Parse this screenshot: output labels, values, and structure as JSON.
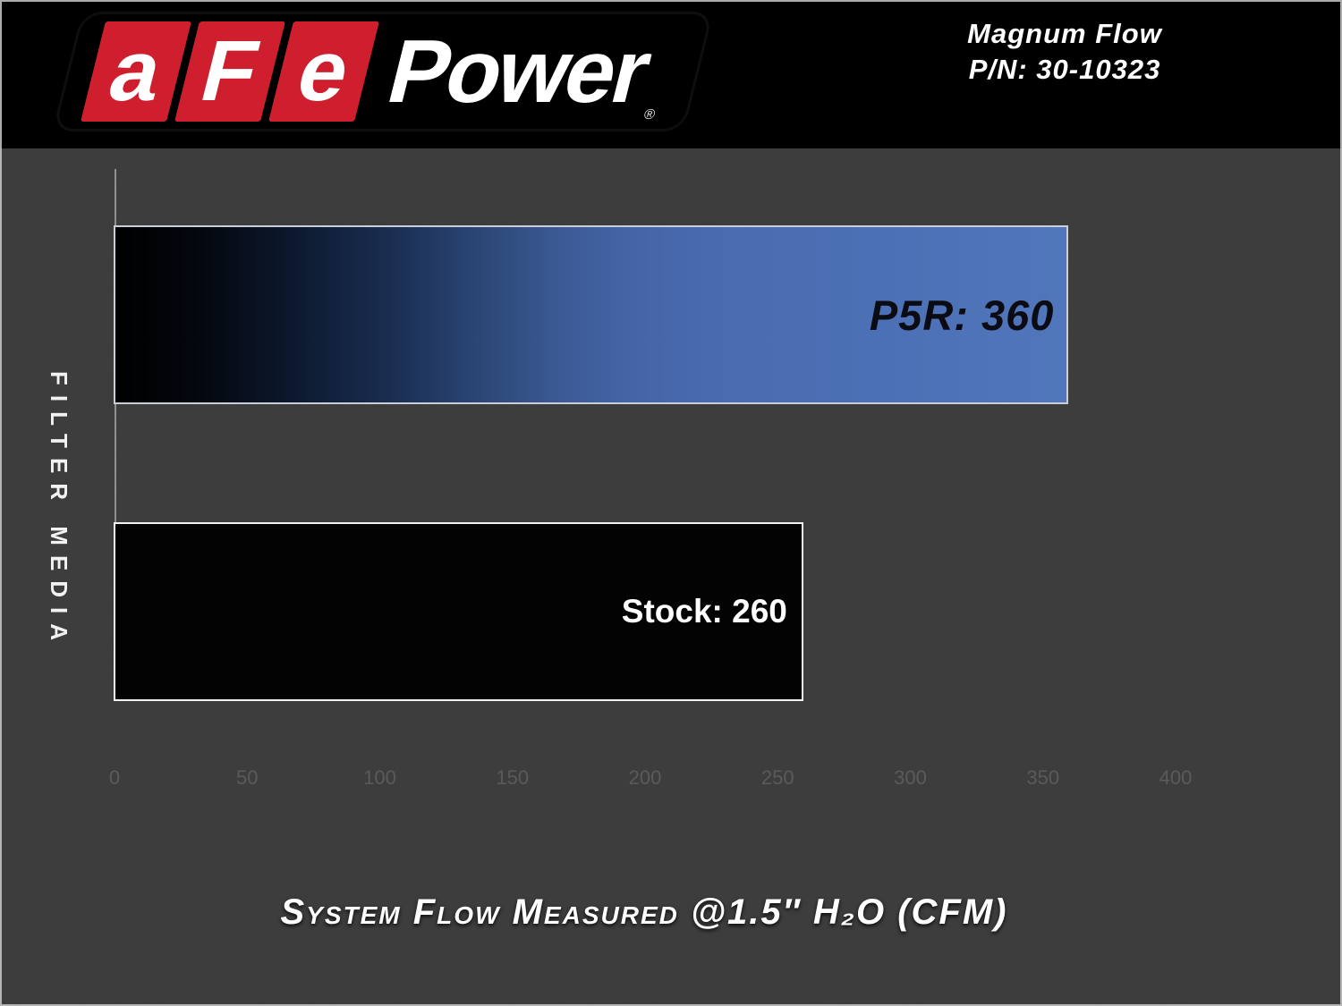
{
  "brand": {
    "logo_blocks": [
      "a",
      "F",
      "e"
    ],
    "logo_word": "Power",
    "registered_mark": "®"
  },
  "header": {
    "product_line": "Magnum Flow",
    "part_number": "P/N: 30-10323"
  },
  "axis": {
    "y_title": "FILTER MEDIA",
    "caption": "System Flow Measured @1.5″ H₂O (CFM)"
  },
  "bars": [
    {
      "label": "P5R: 360"
    },
    {
      "label": "Stock: 260"
    }
  ],
  "chart_data": {
    "type": "bar",
    "orientation": "horizontal",
    "categories": [
      "P5R",
      "Stock"
    ],
    "values": [
      360,
      260
    ],
    "data_labels": [
      "P5R: 360",
      "Stock: 260"
    ],
    "title": "Magnum Flow P/N: 30-10323",
    "xlabel": "System Flow Measured @1.5″ H₂O (CFM)",
    "ylabel": "FILTER MEDIA",
    "xlim": [
      0,
      450
    ],
    "xticks": [
      0,
      50,
      100,
      150,
      200,
      250,
      300,
      350,
      400
    ],
    "grid": true,
    "legend": false,
    "colors": {
      "p5r_bar_gradient_start": "#000000",
      "p5r_bar_gradient_end": "#5176bb",
      "stock_bar_fill": "#030303",
      "bar_border": "#e8e8e8",
      "gridline": "#3c3c3c",
      "zero_line": "#909090",
      "tick_label": "#5a5a5a",
      "chart_background": "#101010",
      "banner_background": "#000000",
      "brand_red": "#cf1f2f",
      "text_white": "#ffffff"
    }
  }
}
